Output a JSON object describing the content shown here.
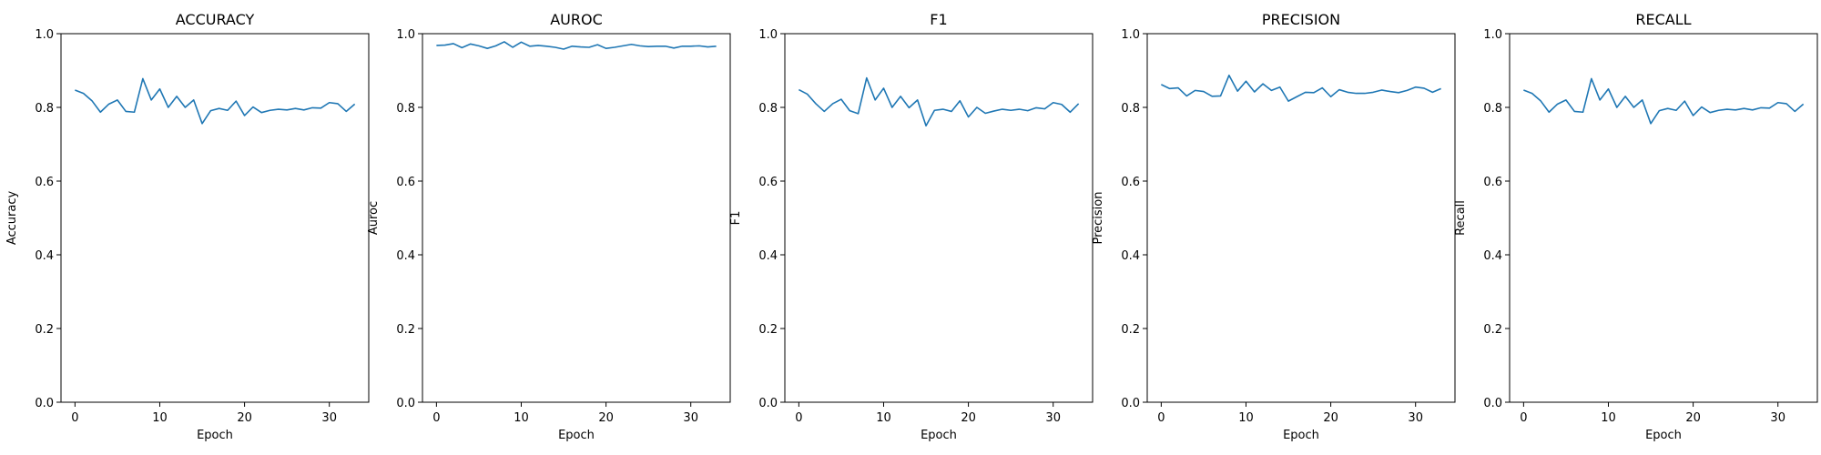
{
  "chart_data": [
    {
      "type": "line",
      "title": "ACCURACY",
      "xlabel": "Epoch",
      "ylabel": "Accuracy",
      "ylim": [
        0,
        1
      ],
      "xlim": [
        -1.65,
        34.65
      ],
      "xticks": [
        "0",
        "10",
        "20",
        "30"
      ],
      "yticks": [
        "0.0",
        "0.2",
        "0.4",
        "0.6",
        "0.8",
        "1.0"
      ],
      "grid": false,
      "series": [
        {
          "color": "#1f77b4",
          "x": [
            0,
            1,
            2,
            3,
            4,
            5,
            6,
            7,
            8,
            9,
            10,
            11,
            12,
            13,
            14,
            15,
            16,
            17,
            18,
            19,
            20,
            21,
            22,
            23,
            24,
            25,
            26,
            27,
            28,
            29,
            30,
            31,
            32,
            33
          ],
          "y": [
            0.847,
            0.838,
            0.818,
            0.787,
            0.809,
            0.82,
            0.789,
            0.787,
            0.878,
            0.82,
            0.85,
            0.8,
            0.83,
            0.8,
            0.82,
            0.756,
            0.791,
            0.797,
            0.792,
            0.817,
            0.778,
            0.801,
            0.786,
            0.792,
            0.795,
            0.793,
            0.797,
            0.793,
            0.799,
            0.798,
            0.813,
            0.81,
            0.789,
            0.809
          ]
        }
      ]
    },
    {
      "type": "line",
      "title": "AUROC",
      "xlabel": "Epoch",
      "ylabel": "Auroc",
      "ylim": [
        0,
        1
      ],
      "xlim": [
        -1.65,
        34.65
      ],
      "xticks": [
        "0",
        "10",
        "20",
        "30"
      ],
      "yticks": [
        "0.0",
        "0.2",
        "0.4",
        "0.6",
        "0.8",
        "1.0"
      ],
      "grid": false,
      "series": [
        {
          "color": "#1f77b4",
          "x": [
            0,
            1,
            2,
            3,
            4,
            5,
            6,
            7,
            8,
            9,
            10,
            11,
            12,
            13,
            14,
            15,
            16,
            17,
            18,
            19,
            20,
            21,
            22,
            23,
            24,
            25,
            26,
            27,
            28,
            29,
            30,
            31,
            32,
            33
          ],
          "y": [
            0.968,
            0.969,
            0.973,
            0.962,
            0.972,
            0.967,
            0.96,
            0.967,
            0.978,
            0.963,
            0.977,
            0.966,
            0.968,
            0.966,
            0.963,
            0.958,
            0.966,
            0.964,
            0.963,
            0.97,
            0.96,
            0.963,
            0.967,
            0.971,
            0.967,
            0.965,
            0.966,
            0.966,
            0.961,
            0.966,
            0.966,
            0.967,
            0.964,
            0.966
          ]
        }
      ]
    },
    {
      "type": "line",
      "title": "F1",
      "xlabel": "Epoch",
      "ylabel": "F1",
      "ylim": [
        0,
        1
      ],
      "xlim": [
        -1.65,
        34.65
      ],
      "xticks": [
        "0",
        "10",
        "20",
        "30"
      ],
      "yticks": [
        "0.0",
        "0.2",
        "0.4",
        "0.6",
        "0.8",
        "1.0"
      ],
      "grid": false,
      "series": [
        {
          "color": "#1f77b4",
          "x": [
            0,
            1,
            2,
            3,
            4,
            5,
            6,
            7,
            8,
            9,
            10,
            11,
            12,
            13,
            14,
            15,
            16,
            17,
            18,
            19,
            20,
            21,
            22,
            23,
            24,
            25,
            26,
            27,
            28,
            29,
            30,
            31,
            32,
            33
          ],
          "y": [
            0.848,
            0.836,
            0.81,
            0.789,
            0.81,
            0.822,
            0.791,
            0.783,
            0.88,
            0.82,
            0.852,
            0.8,
            0.83,
            0.799,
            0.82,
            0.75,
            0.792,
            0.795,
            0.789,
            0.818,
            0.774,
            0.8,
            0.784,
            0.79,
            0.795,
            0.792,
            0.795,
            0.791,
            0.799,
            0.796,
            0.813,
            0.808,
            0.787,
            0.81
          ]
        }
      ]
    },
    {
      "type": "line",
      "title": "PRECISION",
      "xlabel": "Epoch",
      "ylabel": "Precision",
      "ylim": [
        0,
        1
      ],
      "xlim": [
        -1.65,
        34.65
      ],
      "xticks": [
        "0",
        "10",
        "20",
        "30"
      ],
      "yticks": [
        "0.0",
        "0.2",
        "0.4",
        "0.6",
        "0.8",
        "1.0"
      ],
      "grid": false,
      "series": [
        {
          "color": "#1f77b4",
          "x": [
            0,
            1,
            2,
            3,
            4,
            5,
            6,
            7,
            8,
            9,
            10,
            11,
            12,
            13,
            14,
            15,
            16,
            17,
            18,
            19,
            20,
            21,
            22,
            23,
            24,
            25,
            26,
            27,
            28,
            29,
            30,
            31,
            32,
            33
          ],
          "y": [
            0.862,
            0.851,
            0.853,
            0.831,
            0.846,
            0.843,
            0.83,
            0.831,
            0.887,
            0.844,
            0.871,
            0.842,
            0.864,
            0.846,
            0.855,
            0.817,
            0.829,
            0.841,
            0.84,
            0.853,
            0.829,
            0.848,
            0.841,
            0.838,
            0.838,
            0.841,
            0.847,
            0.843,
            0.84,
            0.846,
            0.855,
            0.852,
            0.841,
            0.851
          ]
        }
      ]
    },
    {
      "type": "line",
      "title": "RECALL",
      "xlabel": "Epoch",
      "ylabel": "Recall",
      "ylim": [
        0,
        1
      ],
      "xlim": [
        -1.65,
        34.65
      ],
      "xticks": [
        "0",
        "10",
        "20",
        "30"
      ],
      "yticks": [
        "0.0",
        "0.2",
        "0.4",
        "0.6",
        "0.8",
        "1.0"
      ],
      "grid": false,
      "series": [
        {
          "color": "#1f77b4",
          "x": [
            0,
            1,
            2,
            3,
            4,
            5,
            6,
            7,
            8,
            9,
            10,
            11,
            12,
            13,
            14,
            15,
            16,
            17,
            18,
            19,
            20,
            21,
            22,
            23,
            24,
            25,
            26,
            27,
            28,
            29,
            30,
            31,
            32,
            33
          ],
          "y": [
            0.847,
            0.838,
            0.818,
            0.787,
            0.809,
            0.82,
            0.789,
            0.787,
            0.878,
            0.82,
            0.85,
            0.8,
            0.83,
            0.8,
            0.82,
            0.756,
            0.791,
            0.797,
            0.792,
            0.817,
            0.778,
            0.801,
            0.786,
            0.792,
            0.795,
            0.793,
            0.797,
            0.793,
            0.799,
            0.798,
            0.813,
            0.81,
            0.789,
            0.809
          ]
        }
      ]
    }
  ]
}
